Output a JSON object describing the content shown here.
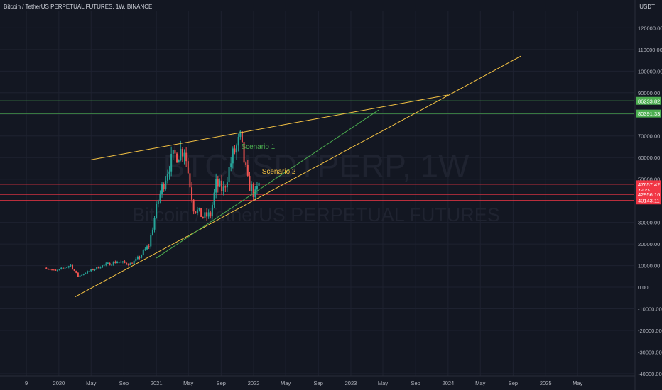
{
  "header": {
    "symbol_line": "Bitcoin / TetherUS PERPETUAL FUTURES, 1W, BINANCE",
    "price_unit": "USDT"
  },
  "watermark": {
    "ticker": "BTCUSDTPERP, 1W",
    "description": "Bitcoin / TetherUS PERPETUAL FUTURES"
  },
  "colors": {
    "background": "#131722",
    "axis_text": "#b2b5be",
    "grid": "#1e2230",
    "up_candle": "#26a69a",
    "down_candle": "#ef5350",
    "orange_line": "#f6c343",
    "green_line": "#4caf50",
    "red_line": "#f23645",
    "watermark": "#1f2330"
  },
  "chart_data": {
    "type": "candlestick",
    "timeframe": "1W",
    "x_ticks": [
      "9",
      "2020",
      "May",
      "Sep",
      "2021",
      "May",
      "Sep",
      "2022",
      "May",
      "Sep",
      "2023",
      "May",
      "Sep",
      "2024",
      "May",
      "Sep",
      "2025",
      "May"
    ],
    "y_ticks": [
      "120000.00",
      "110000.00",
      "100000.00",
      "90000.00",
      "80000.00",
      "70000.00",
      "60000.00",
      "50000.00",
      "40000.00",
      "30000.00",
      "20000.00",
      "10000.00",
      "0.00",
      "-10000.00",
      "-20000.00",
      "-30000.00",
      "-40000.00"
    ],
    "ylim": [
      -41000,
      128000
    ],
    "price_path": [
      [
        "2019-11-15",
        9000
      ],
      [
        "2019-12-20",
        7400
      ],
      [
        "2020-02-14",
        10200
      ],
      [
        "2020-03-13",
        5000
      ],
      [
        "2020-04-17",
        7100
      ],
      [
        "2020-06-05",
        9700
      ],
      [
        "2020-08-07",
        11800
      ],
      [
        "2020-09-25",
        10700
      ],
      [
        "2020-10-23",
        13100
      ],
      [
        "2020-12-04",
        19400
      ],
      [
        "2021-01-08",
        40500
      ],
      [
        "2021-02-19",
        57000
      ],
      [
        "2021-03-12",
        61000
      ],
      [
        "2021-04-16",
        64500
      ],
      [
        "2021-05-21",
        37000
      ],
      [
        "2021-06-25",
        32500
      ],
      [
        "2021-07-23",
        33500
      ],
      [
        "2021-08-13",
        47500
      ],
      [
        "2021-09-10",
        45000
      ],
      [
        "2021-10-15",
        61000
      ],
      [
        "2021-11-12",
        68500
      ],
      [
        "2021-12-10",
        48500
      ],
      [
        "2022-01-07",
        42500
      ],
      [
        "2022-01-21",
        47657
      ]
    ],
    "price_labels": [
      {
        "text": "86233.82",
        "value": 86233.82,
        "color": "green"
      },
      {
        "text": "80391.33",
        "value": 80391.33,
        "color": "green"
      },
      {
        "text": "47657.42",
        "value": 47657.42,
        "color": "red",
        "sub": "4d 6h"
      },
      {
        "text": "42956.16",
        "value": 42956.16,
        "color": "red"
      },
      {
        "text": "40143.11",
        "value": 40143.11,
        "color": "red"
      }
    ],
    "horizontal_lines": [
      {
        "value": 86233.82,
        "color": "green"
      },
      {
        "value": 80391.33,
        "color": "green"
      },
      {
        "value": 47657.42,
        "color": "red"
      },
      {
        "value": 42956.16,
        "color": "red"
      },
      {
        "value": 40143.11,
        "color": "red"
      }
    ],
    "trend_lines": [
      {
        "color": "orange",
        "from": [
          "2020-03-01",
          -4500
        ],
        "to": [
          "2024-10-01",
          107000
        ]
      },
      {
        "color": "orange",
        "from": [
          "2020-05-01",
          59000
        ],
        "to": [
          "2024-01-01",
          89000
        ]
      },
      {
        "color": "green",
        "from": [
          "2021-01-01",
          13500
        ],
        "to": [
          "2023-04-15",
          82000
        ]
      }
    ],
    "annotations": [
      {
        "text": "Scenario 1",
        "at": [
          "2021-11-15",
          64000
        ],
        "color": "green"
      },
      {
        "text": "Scenario 2",
        "at": [
          "2022-02-01",
          52500
        ],
        "color": "orange"
      }
    ]
  }
}
